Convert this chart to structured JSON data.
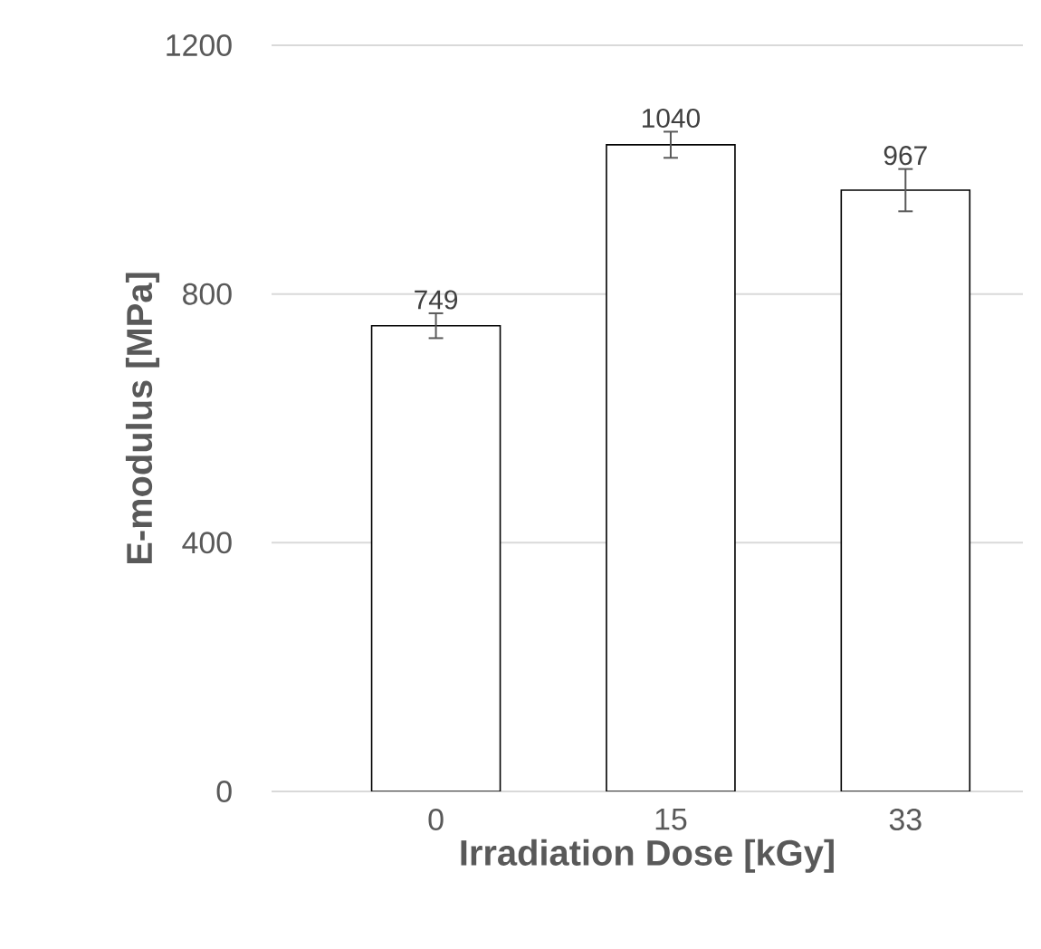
{
  "chart_data": {
    "type": "bar",
    "xlabel": "Irradiation Dose [kGy]",
    "ylabel": "E-modulus [MPa]",
    "categories": [
      "0",
      "15",
      "33"
    ],
    "values": [
      749,
      1040,
      967
    ],
    "errors": [
      20,
      21,
      34
    ],
    "color": "#ffffff",
    "data_labels": true,
    "ylim": [
      0,
      1200
    ],
    "yticks": [
      0,
      400,
      800,
      1200
    ],
    "grid": "y"
  }
}
